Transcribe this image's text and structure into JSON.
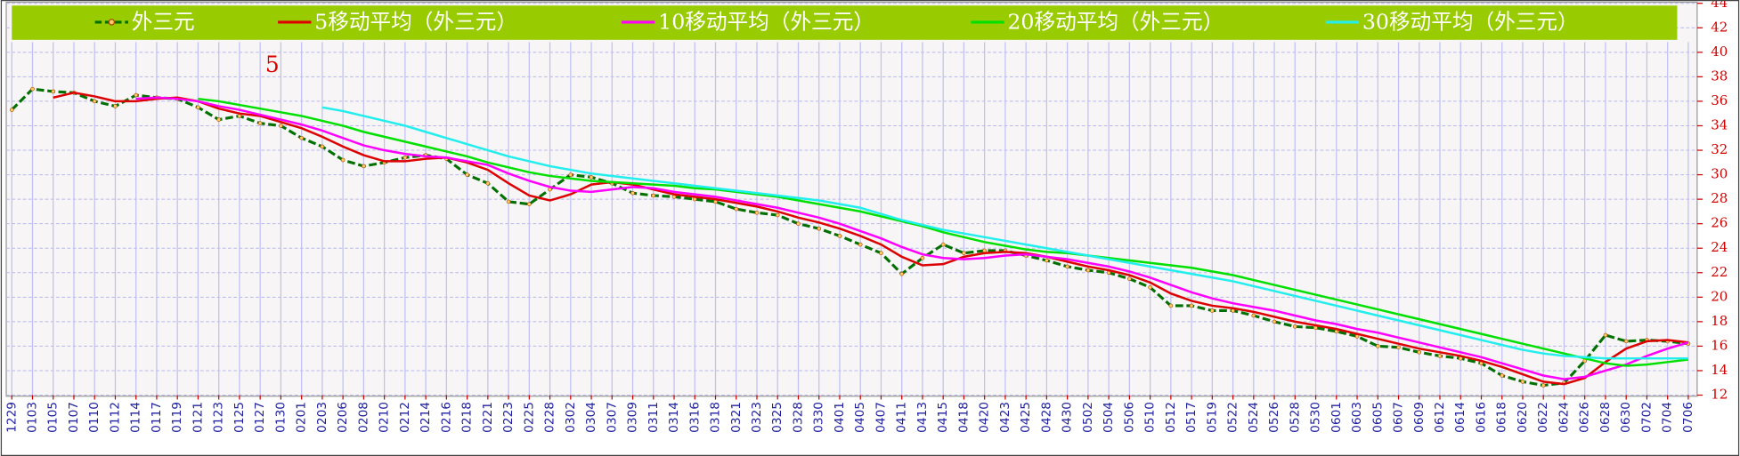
{
  "chart_data": {
    "type": "line",
    "annotation": "5",
    "legend": "top",
    "grid": true,
    "categories": [
      "1229",
      "0103",
      "0105",
      "0107",
      "0110",
      "0112",
      "0114",
      "0117",
      "0119",
      "0121",
      "0123",
      "0125",
      "0127",
      "0130",
      "0201",
      "0203",
      "0206",
      "0208",
      "0210",
      "0212",
      "0214",
      "0216",
      "0218",
      "0221",
      "0223",
      "0225",
      "0228",
      "0302",
      "0304",
      "0307",
      "0309",
      "0311",
      "0314",
      "0316",
      "0318",
      "0321",
      "0323",
      "0325",
      "0328",
      "0330",
      "0401",
      "0405",
      "0407",
      "0411",
      "0413",
      "0415",
      "0418",
      "0420",
      "0423",
      "0425",
      "0428",
      "0430",
      "0502",
      "0504",
      "0506",
      "0510",
      "0512",
      "0517",
      "0519",
      "0522",
      "0524",
      "0526",
      "0528",
      "0530",
      "0601",
      "0603",
      "0605",
      "0607",
      "0609",
      "0612",
      "0614",
      "0616",
      "0618",
      "0620",
      "0622",
      "0624",
      "0626",
      "0628",
      "0630",
      "0702",
      "0704",
      "0706"
    ],
    "ylim": [
      12,
      44
    ],
    "yticks": [
      12,
      14,
      16,
      18,
      20,
      22,
      24,
      26,
      28,
      30,
      32,
      34,
      36,
      38,
      40,
      42,
      44
    ],
    "series": [
      {
        "name": "外三元",
        "color": "#007000",
        "values": [
          35.3,
          37.0,
          36.8,
          36.7,
          36.0,
          35.6,
          36.5,
          36.3,
          36.2,
          35.5,
          34.5,
          34.8,
          34.2,
          34.0,
          33.0,
          32.3,
          31.2,
          30.7,
          31.0,
          31.4,
          31.6,
          31.3,
          30.0,
          29.3,
          27.8,
          27.6,
          28.8,
          30.0,
          29.8,
          29.3,
          28.5,
          28.3,
          28.2,
          28.0,
          27.8,
          27.2,
          26.9,
          26.7,
          26.0,
          25.6,
          25.0,
          24.3,
          23.6,
          21.9,
          23.2,
          24.3,
          23.6,
          23.8,
          23.8,
          23.4,
          23.0,
          22.5,
          22.2,
          22.0,
          21.5,
          20.8,
          19.3,
          19.3,
          18.9,
          18.9,
          18.5,
          18.0,
          17.6,
          17.5,
          17.2,
          16.8,
          16.0,
          15.9,
          15.5,
          15.2,
          15.0,
          14.6,
          13.6,
          13.1,
          12.8,
          13.0,
          14.8,
          16.9,
          16.4,
          16.5,
          16.4,
          16.2
        ]
      },
      {
        "name": "5移动平均（外三元）",
        "color": "#dd0000",
        "values": [
          null,
          null,
          36.3,
          36.7,
          36.4,
          36.0,
          36.0,
          36.2,
          36.3,
          36.0,
          35.4,
          35.0,
          34.8,
          34.3,
          33.8,
          33.1,
          32.3,
          31.6,
          31.1,
          31.1,
          31.3,
          31.4,
          31.0,
          30.4,
          29.3,
          28.3,
          27.9,
          28.4,
          29.2,
          29.4,
          29.2,
          28.8,
          28.4,
          28.2,
          28.0,
          27.7,
          27.4,
          27.0,
          26.5,
          26.1,
          25.6,
          25.0,
          24.3,
          23.3,
          22.6,
          22.7,
          23.3,
          23.6,
          23.7,
          23.6,
          23.3,
          22.9,
          22.5,
          22.2,
          21.8,
          21.2,
          20.3,
          19.7,
          19.3,
          19.1,
          18.8,
          18.4,
          18.0,
          17.7,
          17.4,
          17.0,
          16.6,
          16.2,
          15.8,
          15.5,
          15.2,
          14.8,
          14.3,
          13.7,
          13.1,
          12.9,
          13.4,
          14.7,
          15.8,
          16.4,
          16.5,
          16.3
        ]
      },
      {
        "name": "10移动平均（外三元）",
        "color": "#ff00ff",
        "values": [
          null,
          null,
          null,
          null,
          null,
          null,
          36.2,
          36.3,
          36.2,
          36.0,
          35.6,
          35.3,
          34.9,
          34.5,
          34.1,
          33.6,
          33.0,
          32.4,
          32.0,
          31.7,
          31.5,
          31.4,
          31.1,
          30.8,
          30.1,
          29.5,
          29.0,
          28.7,
          28.6,
          28.8,
          29.0,
          28.9,
          28.6,
          28.4,
          28.2,
          27.9,
          27.6,
          27.3,
          26.9,
          26.5,
          26.0,
          25.4,
          24.8,
          24.1,
          23.5,
          23.2,
          23.1,
          23.2,
          23.4,
          23.5,
          23.3,
          23.1,
          22.8,
          22.5,
          22.1,
          21.6,
          21.0,
          20.4,
          19.9,
          19.5,
          19.2,
          18.9,
          18.5,
          18.1,
          17.8,
          17.4,
          17.1,
          16.7,
          16.3,
          15.9,
          15.5,
          15.1,
          14.6,
          14.1,
          13.6,
          13.3,
          13.5,
          14.0,
          14.5,
          15.2,
          15.8,
          16.3
        ]
      },
      {
        "name": "20移动平均（外三元）",
        "color": "#00e000",
        "values": [
          null,
          null,
          null,
          null,
          null,
          null,
          null,
          null,
          null,
          36.2,
          36.0,
          35.7,
          35.4,
          35.1,
          34.8,
          34.4,
          34.0,
          33.5,
          33.1,
          32.7,
          32.3,
          31.9,
          31.5,
          31.0,
          30.6,
          30.2,
          29.9,
          29.7,
          29.5,
          29.4,
          29.3,
          29.2,
          29.1,
          28.9,
          28.8,
          28.6,
          28.4,
          28.2,
          27.9,
          27.6,
          27.3,
          27.0,
          26.6,
          26.2,
          25.8,
          25.3,
          24.9,
          24.5,
          24.2,
          23.9,
          23.7,
          23.6,
          23.4,
          23.2,
          23.0,
          22.8,
          22.6,
          22.4,
          22.1,
          21.8,
          21.4,
          21.0,
          20.6,
          20.2,
          19.8,
          19.4,
          19.0,
          18.6,
          18.2,
          17.8,
          17.4,
          17.0,
          16.6,
          16.2,
          15.8,
          15.4,
          15.0,
          14.6,
          14.4,
          14.5,
          14.7,
          14.9
        ]
      },
      {
        "name": "30移动平均（外三元）",
        "color": "#22eeee",
        "values": [
          null,
          null,
          null,
          null,
          null,
          null,
          null,
          null,
          null,
          null,
          null,
          null,
          null,
          null,
          null,
          35.5,
          35.2,
          34.8,
          34.4,
          34.0,
          33.5,
          33.0,
          32.5,
          32.0,
          31.5,
          31.1,
          30.7,
          30.4,
          30.1,
          29.9,
          29.7,
          29.5,
          29.3,
          29.1,
          28.9,
          28.7,
          28.5,
          28.3,
          28.1,
          27.9,
          27.6,
          27.3,
          26.8,
          26.3,
          25.9,
          25.5,
          25.2,
          24.9,
          24.6,
          24.3,
          24.0,
          23.7,
          23.4,
          23.1,
          22.8,
          22.5,
          22.2,
          21.9,
          21.6,
          21.3,
          20.9,
          20.5,
          20.1,
          19.7,
          19.3,
          18.9,
          18.5,
          18.1,
          17.7,
          17.3,
          16.9,
          16.5,
          16.1,
          15.7,
          15.4,
          15.2,
          15.1,
          15.0,
          15.0,
          15.0,
          15.0,
          15.0
        ]
      }
    ]
  }
}
